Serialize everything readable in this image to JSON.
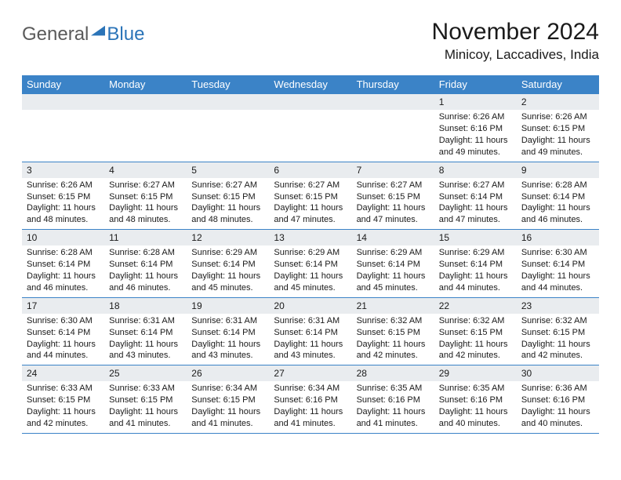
{
  "logo": {
    "general": "General",
    "blue": "Blue"
  },
  "header": {
    "month_title": "November 2024",
    "location": "Minicoy, Laccadives, India"
  },
  "colors": {
    "header_bg": "#3b83c7",
    "header_text": "#ffffff",
    "daynum_bg": "#e9ecef",
    "border": "#3b83c7",
    "logo_gray": "#5a5a5a",
    "logo_blue": "#2b74b8"
  },
  "weekdays": [
    "Sunday",
    "Monday",
    "Tuesday",
    "Wednesday",
    "Thursday",
    "Friday",
    "Saturday"
  ],
  "weeks": [
    [
      {
        "day": null
      },
      {
        "day": null
      },
      {
        "day": null
      },
      {
        "day": null
      },
      {
        "day": null
      },
      {
        "day": "1",
        "sunrise": "Sunrise: 6:26 AM",
        "sunset": "Sunset: 6:16 PM",
        "daylight": "Daylight: 11 hours and 49 minutes."
      },
      {
        "day": "2",
        "sunrise": "Sunrise: 6:26 AM",
        "sunset": "Sunset: 6:15 PM",
        "daylight": "Daylight: 11 hours and 49 minutes."
      }
    ],
    [
      {
        "day": "3",
        "sunrise": "Sunrise: 6:26 AM",
        "sunset": "Sunset: 6:15 PM",
        "daylight": "Daylight: 11 hours and 48 minutes."
      },
      {
        "day": "4",
        "sunrise": "Sunrise: 6:27 AM",
        "sunset": "Sunset: 6:15 PM",
        "daylight": "Daylight: 11 hours and 48 minutes."
      },
      {
        "day": "5",
        "sunrise": "Sunrise: 6:27 AM",
        "sunset": "Sunset: 6:15 PM",
        "daylight": "Daylight: 11 hours and 48 minutes."
      },
      {
        "day": "6",
        "sunrise": "Sunrise: 6:27 AM",
        "sunset": "Sunset: 6:15 PM",
        "daylight": "Daylight: 11 hours and 47 minutes."
      },
      {
        "day": "7",
        "sunrise": "Sunrise: 6:27 AM",
        "sunset": "Sunset: 6:15 PM",
        "daylight": "Daylight: 11 hours and 47 minutes."
      },
      {
        "day": "8",
        "sunrise": "Sunrise: 6:27 AM",
        "sunset": "Sunset: 6:14 PM",
        "daylight": "Daylight: 11 hours and 47 minutes."
      },
      {
        "day": "9",
        "sunrise": "Sunrise: 6:28 AM",
        "sunset": "Sunset: 6:14 PM",
        "daylight": "Daylight: 11 hours and 46 minutes."
      }
    ],
    [
      {
        "day": "10",
        "sunrise": "Sunrise: 6:28 AM",
        "sunset": "Sunset: 6:14 PM",
        "daylight": "Daylight: 11 hours and 46 minutes."
      },
      {
        "day": "11",
        "sunrise": "Sunrise: 6:28 AM",
        "sunset": "Sunset: 6:14 PM",
        "daylight": "Daylight: 11 hours and 46 minutes."
      },
      {
        "day": "12",
        "sunrise": "Sunrise: 6:29 AM",
        "sunset": "Sunset: 6:14 PM",
        "daylight": "Daylight: 11 hours and 45 minutes."
      },
      {
        "day": "13",
        "sunrise": "Sunrise: 6:29 AM",
        "sunset": "Sunset: 6:14 PM",
        "daylight": "Daylight: 11 hours and 45 minutes."
      },
      {
        "day": "14",
        "sunrise": "Sunrise: 6:29 AM",
        "sunset": "Sunset: 6:14 PM",
        "daylight": "Daylight: 11 hours and 45 minutes."
      },
      {
        "day": "15",
        "sunrise": "Sunrise: 6:29 AM",
        "sunset": "Sunset: 6:14 PM",
        "daylight": "Daylight: 11 hours and 44 minutes."
      },
      {
        "day": "16",
        "sunrise": "Sunrise: 6:30 AM",
        "sunset": "Sunset: 6:14 PM",
        "daylight": "Daylight: 11 hours and 44 minutes."
      }
    ],
    [
      {
        "day": "17",
        "sunrise": "Sunrise: 6:30 AM",
        "sunset": "Sunset: 6:14 PM",
        "daylight": "Daylight: 11 hours and 44 minutes."
      },
      {
        "day": "18",
        "sunrise": "Sunrise: 6:31 AM",
        "sunset": "Sunset: 6:14 PM",
        "daylight": "Daylight: 11 hours and 43 minutes."
      },
      {
        "day": "19",
        "sunrise": "Sunrise: 6:31 AM",
        "sunset": "Sunset: 6:14 PM",
        "daylight": "Daylight: 11 hours and 43 minutes."
      },
      {
        "day": "20",
        "sunrise": "Sunrise: 6:31 AM",
        "sunset": "Sunset: 6:14 PM",
        "daylight": "Daylight: 11 hours and 43 minutes."
      },
      {
        "day": "21",
        "sunrise": "Sunrise: 6:32 AM",
        "sunset": "Sunset: 6:15 PM",
        "daylight": "Daylight: 11 hours and 42 minutes."
      },
      {
        "day": "22",
        "sunrise": "Sunrise: 6:32 AM",
        "sunset": "Sunset: 6:15 PM",
        "daylight": "Daylight: 11 hours and 42 minutes."
      },
      {
        "day": "23",
        "sunrise": "Sunrise: 6:32 AM",
        "sunset": "Sunset: 6:15 PM",
        "daylight": "Daylight: 11 hours and 42 minutes."
      }
    ],
    [
      {
        "day": "24",
        "sunrise": "Sunrise: 6:33 AM",
        "sunset": "Sunset: 6:15 PM",
        "daylight": "Daylight: 11 hours and 42 minutes."
      },
      {
        "day": "25",
        "sunrise": "Sunrise: 6:33 AM",
        "sunset": "Sunset: 6:15 PM",
        "daylight": "Daylight: 11 hours and 41 minutes."
      },
      {
        "day": "26",
        "sunrise": "Sunrise: 6:34 AM",
        "sunset": "Sunset: 6:15 PM",
        "daylight": "Daylight: 11 hours and 41 minutes."
      },
      {
        "day": "27",
        "sunrise": "Sunrise: 6:34 AM",
        "sunset": "Sunset: 6:16 PM",
        "daylight": "Daylight: 11 hours and 41 minutes."
      },
      {
        "day": "28",
        "sunrise": "Sunrise: 6:35 AM",
        "sunset": "Sunset: 6:16 PM",
        "daylight": "Daylight: 11 hours and 41 minutes."
      },
      {
        "day": "29",
        "sunrise": "Sunrise: 6:35 AM",
        "sunset": "Sunset: 6:16 PM",
        "daylight": "Daylight: 11 hours and 40 minutes."
      },
      {
        "day": "30",
        "sunrise": "Sunrise: 6:36 AM",
        "sunset": "Sunset: 6:16 PM",
        "daylight": "Daylight: 11 hours and 40 minutes."
      }
    ]
  ]
}
